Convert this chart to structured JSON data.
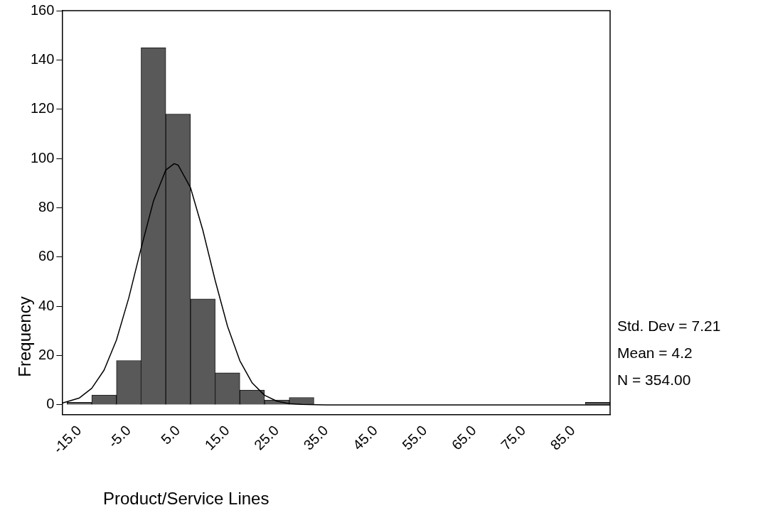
{
  "chart_data": {
    "type": "histogram",
    "bins": [
      -17.5,
      -12.5,
      -7.5,
      -2.5,
      2.5,
      7.5,
      12.5,
      17.5,
      22.5,
      27.5,
      32.5,
      37.5,
      42.5,
      47.5,
      52.5,
      57.5,
      62.5,
      67.5,
      72.5,
      77.5,
      82.5,
      87.5,
      92.5
    ],
    "values": [
      1,
      4,
      18,
      145,
      118,
      43,
      13,
      6,
      2,
      3,
      0,
      0,
      0,
      0,
      0,
      0,
      0,
      0,
      0,
      0,
      0,
      1
    ],
    "color": "#595959",
    "series": [
      {
        "type": "line",
        "color": "#000000",
        "x": [
          -18.5,
          -15,
          -12.5,
          -10,
          -7.5,
          -5,
          -2.5,
          0,
          2.5,
          4.2,
          5,
          7.5,
          10,
          12.5,
          15,
          17.5,
          20,
          22.5,
          25,
          27.5,
          30,
          35,
          92.5
        ],
        "values": [
          0.7,
          2.8,
          6.7,
          14.1,
          26.3,
          43.4,
          63.6,
          82.7,
          95.3,
          97.9,
          97.3,
          88.2,
          70.9,
          50.5,
          31.9,
          17.9,
          8.9,
          3.9,
          1.5,
          0.5,
          0.2,
          0,
          0
        ]
      }
    ],
    "xlabel": "Product/Service Lines",
    "ylabel": "Frequency",
    "xlim": [
      -18.5,
      92.5
    ],
    "xticks": [
      {
        "value": -15,
        "label": "-15.0"
      },
      {
        "value": -5,
        "label": "-5.0"
      },
      {
        "value": 5,
        "label": "5.0"
      },
      {
        "value": 15,
        "label": "15.0"
      },
      {
        "value": 25,
        "label": "25.0"
      },
      {
        "value": 35,
        "label": "35.0"
      },
      {
        "value": 45,
        "label": "45.0"
      },
      {
        "value": 55,
        "label": "55.0"
      },
      {
        "value": 65,
        "label": "65.0"
      },
      {
        "value": 75,
        "label": "75.0"
      },
      {
        "value": 85,
        "label": "85.0"
      }
    ],
    "ylim": [
      -4,
      160
    ],
    "yticks": [
      0,
      20,
      40,
      60,
      80,
      100,
      120,
      140,
      160
    ],
    "annotations": [
      "Std. Dev = 7.21",
      "Mean = 4.2",
      "N = 354.00"
    ],
    "grid": false,
    "legend": false,
    "marker": "none"
  }
}
